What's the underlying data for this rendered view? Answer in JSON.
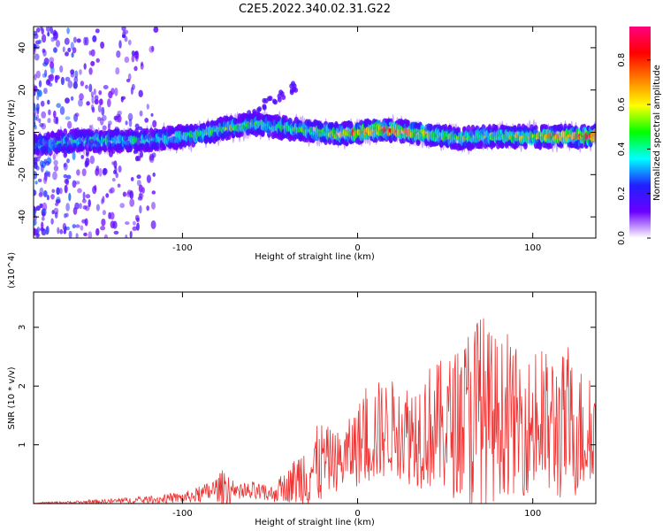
{
  "title": "C2E5.2022.340.02.31.G22",
  "chart_data": [
    {
      "type": "heatmap",
      "xlabel": "Height of straight line (km)",
      "ylabel": "Frequency (Hz)",
      "xlim": [
        -185,
        136
      ],
      "ylim": [
        -50,
        50
      ],
      "xticks": [
        -100,
        0,
        100
      ],
      "yticks": [
        -40,
        -20,
        0,
        20,
        40
      ],
      "colorbar": {
        "label": "Normalized spectral amplitude",
        "range": [
          0,
          0.95
        ],
        "ticks": [
          0.0,
          0.2,
          0.4,
          0.6,
          0.8
        ],
        "colormap": [
          "#ffffff",
          "#6a00ff",
          "#2020ff",
          "#00ffff",
          "#00ff00",
          "#ffff00",
          "#ff8000",
          "#ff0000",
          "#ff0080"
        ]
      },
      "ridge": {
        "x": [
          -180,
          -165,
          -150,
          -130,
          -110,
          -90,
          -75,
          -60,
          -50,
          -40,
          -30,
          -20,
          -10,
          0,
          10,
          20,
          30,
          40,
          50,
          60,
          70,
          80,
          90,
          100,
          110,
          120,
          136
        ],
        "frequency": [
          -6,
          -4,
          -4,
          -4,
          -3,
          -1,
          2,
          4,
          3,
          2,
          1,
          0,
          -1,
          0,
          1,
          1,
          0,
          -1,
          -2,
          -3,
          -2,
          -2,
          -2,
          -2,
          -2,
          -2,
          -2
        ],
        "peak_amplitude": [
          0.4,
          0.45,
          0.45,
          0.45,
          0.45,
          0.5,
          0.55,
          0.5,
          0.5,
          0.5,
          0.55,
          0.6,
          0.75,
          0.85,
          0.95,
          0.9,
          0.85,
          0.7,
          0.6,
          0.55,
          0.55,
          0.6,
          0.65,
          0.7,
          0.8,
          0.9,
          0.95
        ]
      },
      "secondary_feature": {
        "x": [
          -70,
          -35
        ],
        "frequency": [
          5,
          22
        ]
      }
    },
    {
      "type": "line",
      "xlabel": "Height of straight line (km)",
      "ylabel": "SNR (10 * v/v)",
      "y_multiplier": "(x10^4)",
      "xlim": [
        -185,
        136
      ],
      "ylim": [
        0,
        3.6
      ],
      "xticks": [
        -100,
        0,
        100
      ],
      "yticks": [
        1,
        2,
        3
      ],
      "color": "#ee3333",
      "envelope": {
        "x": [
          -185,
          -160,
          -140,
          -120,
          -100,
          -90,
          -80,
          -75,
          -70,
          -60,
          -50,
          -40,
          -30,
          -20,
          -15,
          -10,
          -5,
          0,
          10,
          20,
          30,
          40,
          50,
          60,
          65,
          70,
          75,
          80,
          90,
          100,
          110,
          120,
          130,
          136
        ],
        "mean": [
          0.01,
          0.02,
          0.04,
          0.06,
          0.1,
          0.15,
          0.25,
          0.3,
          0.15,
          0.2,
          0.15,
          0.3,
          0.5,
          0.7,
          0.75,
          0.7,
          0.85,
          1.0,
          1.2,
          1.3,
          1.2,
          1.3,
          1.3,
          1.4,
          1.5,
          1.5,
          1.4,
          1.5,
          1.4,
          1.3,
          1.3,
          1.3,
          1.2,
          1.25
        ],
        "peak": [
          0.02,
          0.05,
          0.09,
          0.13,
          0.2,
          0.3,
          0.5,
          0.7,
          0.3,
          0.4,
          0.3,
          0.6,
          1.2,
          1.5,
          1.3,
          1.3,
          1.5,
          1.8,
          2.2,
          2.2,
          2.2,
          2.5,
          2.6,
          2.9,
          3.5,
          3.6,
          3.2,
          3.0,
          2.8,
          2.6,
          2.8,
          2.7,
          2.4,
          2.0
        ]
      }
    }
  ]
}
